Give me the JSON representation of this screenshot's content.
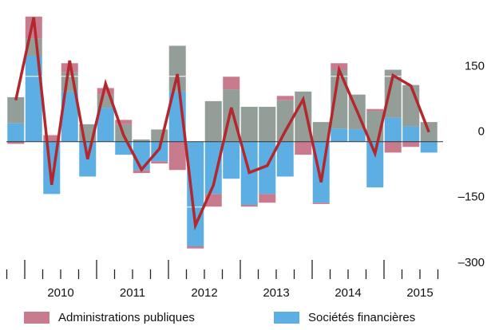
{
  "chart_data": {
    "type": "bar-line",
    "categories": [
      null,
      null,
      null,
      null,
      null,
      null,
      null,
      null,
      null,
      null,
      null,
      null,
      null,
      null,
      null,
      null,
      null,
      null,
      null,
      null,
      null,
      null,
      null,
      null
    ],
    "x_labels": [
      "2010",
      "2011",
      "2012",
      "2013",
      "2014",
      "2015"
    ],
    "series": [
      {
        "name": "Sociétés financières",
        "color": "#5daee3",
        "values": [
          42,
          197,
          -120,
          115,
          -80,
          78,
          -30,
          -65,
          -45,
          115,
          -240,
          -120,
          -85,
          -145,
          -120,
          -80,
          0,
          -140,
          30,
          28,
          -105,
          55,
          35,
          -25
        ]
      },
      {
        "color": "#939e98",
        "values": [
          60,
          40,
          0,
          45,
          40,
          30,
          40,
          5,
          28,
          105,
          0,
          93,
          120,
          80,
          80,
          95,
          115,
          45,
          135,
          80,
          70,
          110,
          95,
          45
        ]
      },
      {
        "name": "Administrations publiques",
        "color": "#c97b8e",
        "values": [
          -5,
          50,
          15,
          20,
          0,
          15,
          10,
          -7,
          -5,
          -65,
          -5,
          -30,
          30,
          -5,
          -20,
          10,
          -30,
          -3,
          15,
          0,
          5,
          -25,
          -12,
          0
        ]
      }
    ],
    "line": {
      "color": "#b3282d",
      "values": [
        95,
        285,
        -99,
        186,
        -40,
        133,
        15,
        -64,
        -16,
        155,
        -192,
        -100,
        78,
        -71,
        -55,
        24,
        97,
        -93,
        165,
        70,
        -27,
        152,
        128,
        22
      ]
    },
    "ylim": [
      -315,
      325
    ],
    "yticks": [
      150,
      0,
      {
        "value": -150,
        "label": "–150"
      },
      {
        "value": -300,
        "label": "–300"
      }
    ]
  }
}
